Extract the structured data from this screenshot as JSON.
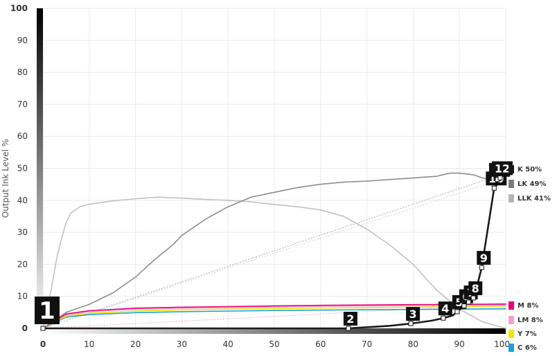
{
  "chart_data": {
    "type": "line",
    "ylabel": "Output Ink Level %",
    "xlabel": "",
    "xlim": [
      0,
      100
    ],
    "ylim": [
      0,
      100
    ],
    "x_ticks": [
      "0",
      "10",
      "20",
      "30",
      "40",
      "50",
      "60",
      "70",
      "80",
      "90",
      "100"
    ],
    "y_ticks": [
      "0",
      "10",
      "20",
      "30",
      "40",
      "50",
      "60",
      "70",
      "80",
      "90",
      "100"
    ],
    "grid": true,
    "legend_position": "right",
    "series": [
      {
        "name": "K 50%",
        "color": "#1a1a1a",
        "x": [
          0,
          50,
          66,
          75,
          79.5,
          84,
          86.5,
          88.5,
          89.5,
          91,
          92.5,
          93.5,
          94.8,
          96,
          97.5,
          99,
          100
        ],
        "y": [
          0,
          0,
          0,
          0.8,
          1.5,
          2.4,
          3.2,
          4.0,
          5.2,
          7.0,
          9.0,
          11.5,
          19.0,
          30.0,
          43.8,
          46.5,
          48.5
        ]
      },
      {
        "name": "LK 49%",
        "color": "#8c8c8c",
        "x": [
          0,
          5,
          10,
          15,
          20,
          23,
          25,
          28,
          30,
          35,
          40,
          45,
          50,
          55,
          60,
          65,
          70,
          75,
          80,
          85,
          88,
          90,
          93,
          95,
          98,
          100
        ],
        "y": [
          0,
          5,
          7.5,
          11,
          16,
          20,
          22.5,
          26,
          29,
          34,
          38,
          41,
          42.5,
          44,
          45,
          45.7,
          46,
          46.5,
          47,
          47.5,
          48.5,
          48.5,
          48,
          47,
          46.5,
          46
        ]
      },
      {
        "name": "LLK 41%",
        "color": "#c0c0c0",
        "x": [
          0,
          1,
          2,
          3,
          4,
          5,
          6,
          8,
          10,
          15,
          20,
          25,
          30,
          35,
          40,
          45,
          50,
          55,
          60,
          65,
          70,
          75,
          80,
          85,
          90,
          95,
          100
        ],
        "y": [
          0,
          6,
          14,
          22,
          28,
          33,
          36,
          38,
          38.8,
          39.8,
          40.5,
          41,
          40.7,
          40.3,
          40,
          39.5,
          38.7,
          38,
          37,
          35,
          31,
          26,
          20,
          12,
          6,
          2,
          0
        ]
      },
      {
        "name": "M 8%",
        "color": "#e6007e",
        "x": [
          0,
          5,
          10,
          20,
          30,
          40,
          50,
          60,
          70,
          80,
          90,
          100
        ],
        "y": [
          0,
          4.5,
          5.5,
          6.3,
          6.6,
          6.8,
          7.0,
          7.2,
          7.3,
          7.4,
          7.5,
          7.6
        ]
      },
      {
        "name": "LM 8%",
        "color": "#f59fcf",
        "x": [
          0,
          5,
          10,
          20,
          30,
          40,
          50,
          60,
          70,
          80,
          90,
          100
        ],
        "y": [
          0,
          4.2,
          5.2,
          6.0,
          6.3,
          6.5,
          6.7,
          6.9,
          7.0,
          7.1,
          7.2,
          7.3
        ]
      },
      {
        "name": "Y 7%",
        "color": "#f2e500",
        "x": [
          0,
          5,
          10,
          20,
          30,
          40,
          50,
          60,
          70,
          80,
          90,
          100
        ],
        "y": [
          0,
          3.8,
          4.7,
          5.4,
          5.8,
          6.0,
          6.2,
          6.4,
          6.5,
          6.6,
          6.8,
          7.0
        ]
      },
      {
        "name": "C 6%",
        "color": "#1ca0dc",
        "x": [
          0,
          5,
          10,
          20,
          30,
          40,
          50,
          60,
          70,
          80,
          90,
          100
        ],
        "y": [
          0,
          3.5,
          4.3,
          4.9,
          5.2,
          5.4,
          5.6,
          5.7,
          5.8,
          5.9,
          6.0,
          6.1
        ]
      }
    ],
    "reference_lines": [
      {
        "color": "#a8a8a8",
        "x": [
          0,
          100
        ],
        "y": [
          0,
          48.5
        ]
      },
      {
        "color": "#d0d0d0",
        "x": [
          0,
          100
        ],
        "y": [
          0,
          47
        ]
      },
      {
        "color": "#f0a8d0",
        "x": [
          0,
          100
        ],
        "y": [
          0,
          7.5
        ]
      }
    ],
    "control_points": [
      {
        "label": "1",
        "x": 0,
        "y": 0
      },
      {
        "label": "2",
        "x": 66,
        "y": 0
      },
      {
        "label": "3",
        "x": 79.5,
        "y": 1.5
      },
      {
        "label": "4",
        "x": 86.5,
        "y": 3.2
      },
      {
        "label": "5",
        "x": 89.5,
        "y": 5.2
      },
      {
        "label": "6",
        "x": 91,
        "y": 7.0
      },
      {
        "label": "7",
        "x": 92,
        "y": 8.2
      },
      {
        "label": "8",
        "x": 93,
        "y": 9.5
      },
      {
        "label": "9",
        "x": 94.8,
        "y": 19.0
      },
      {
        "label": "10",
        "x": 97.5,
        "y": 43.8
      },
      {
        "label": "11",
        "x": 98.2,
        "y": 46.5
      },
      {
        "label": "12",
        "x": 98.8,
        "y": 47.0
      }
    ]
  },
  "legend": [
    {
      "label": "K 50%",
      "color": "#1a1a1a"
    },
    {
      "label": "LK 49%",
      "color": "#7a7a7a"
    },
    {
      "label": "LLK 41%",
      "color": "#b5b5b5"
    },
    {
      "label": "M 8%",
      "color": "#e6007e"
    },
    {
      "label": "LM 8%",
      "color": "#f59fcf"
    },
    {
      "label": "Y 7%",
      "color": "#f2e500"
    },
    {
      "label": "C 6%",
      "color": "#1ca0dc"
    }
  ]
}
